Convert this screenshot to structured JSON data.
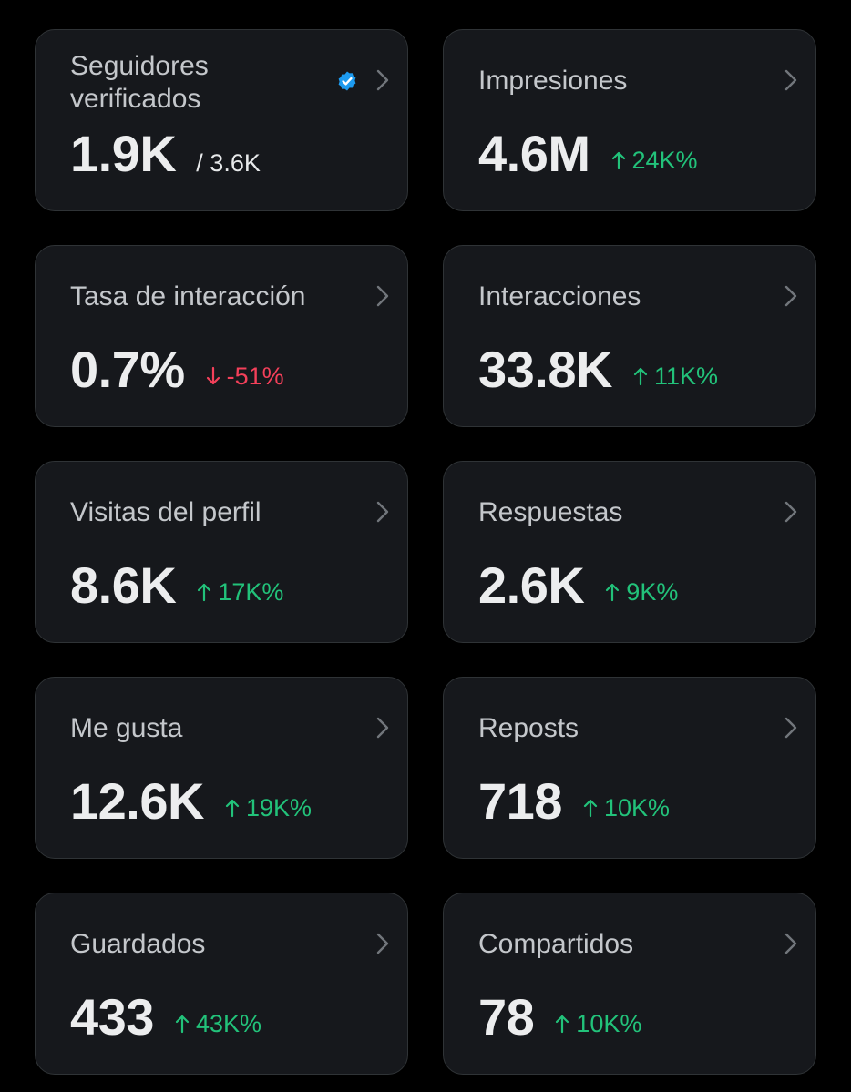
{
  "colors": {
    "background": "#000000",
    "card": "#16181c",
    "card_border": "#2f3336",
    "label": "#c4c7cb",
    "value": "#ecedee",
    "positive": "#22c27a",
    "negative": "#f4405a",
    "verified": "#1d9bf0"
  },
  "metrics": [
    {
      "title": "Seguidores verificados",
      "value": "1.9K",
      "total": "/ 3.6K",
      "icon": "verified-badge-icon"
    },
    {
      "title": "Impresiones",
      "value": "4.6M",
      "change": "24K%",
      "direction": "up"
    },
    {
      "title": "Tasa de interacción",
      "value": "0.7%",
      "change": "-51%",
      "direction": "down"
    },
    {
      "title": "Interacciones",
      "value": "33.8K",
      "change": "11K%",
      "direction": "up"
    },
    {
      "title": "Visitas del perfil",
      "value": "8.6K",
      "change": "17K%",
      "direction": "up"
    },
    {
      "title": "Respuestas",
      "value": "2.6K",
      "change": "9K%",
      "direction": "up"
    },
    {
      "title": "Me gusta",
      "value": "12.6K",
      "change": "19K%",
      "direction": "up"
    },
    {
      "title": "Reposts",
      "value": "718",
      "change": "10K%",
      "direction": "up"
    },
    {
      "title": "Guardados",
      "value": "433",
      "change": "43K%",
      "direction": "up"
    },
    {
      "title": "Compartidos",
      "value": "78",
      "change": "10K%",
      "direction": "up"
    }
  ]
}
